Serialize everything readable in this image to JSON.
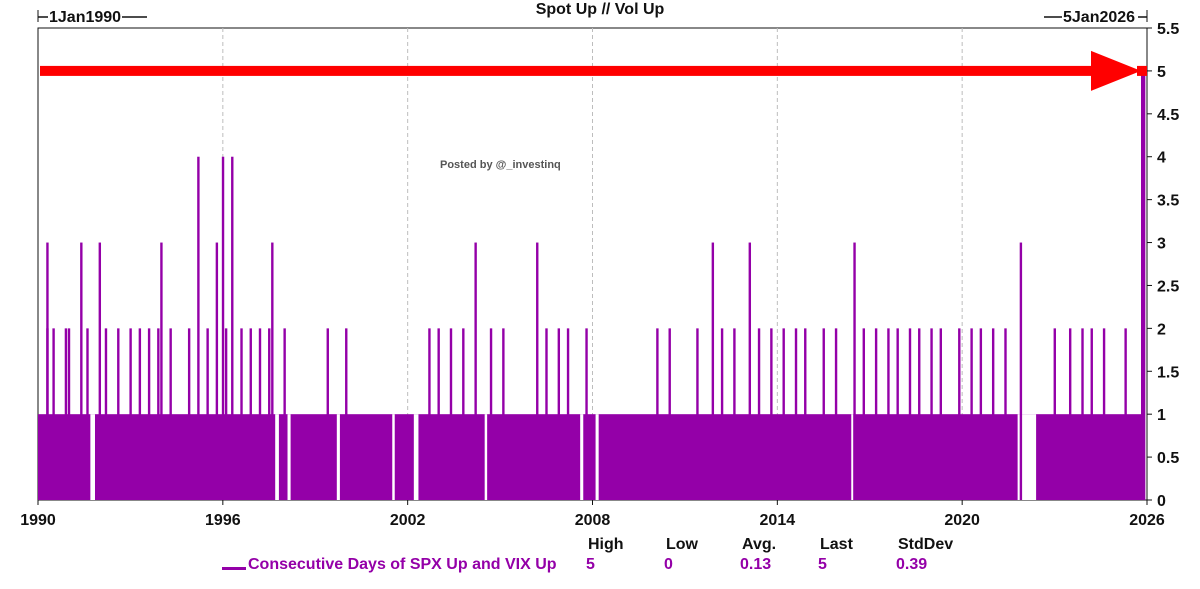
{
  "title": "Spot Up // Vol Up",
  "annotation": "Posted by @_investinq",
  "colors": {
    "series": "#9400a8",
    "arrow": "#ff0000",
    "grid": "#bdbdbd",
    "text": "#111111"
  },
  "range": {
    "start_label": "1Jan1990",
    "end_label": "5Jan2026"
  },
  "legend": {
    "series_name": "Consecutive Days of SPX Up and VIX Up",
    "headers": {
      "high": "High",
      "low": "Low",
      "avg": "Avg.",
      "last": "Last",
      "stddev": "StdDev"
    },
    "values": {
      "high": "5",
      "low": "0",
      "avg": "0.13",
      "last": "5",
      "stddev": "0.39"
    }
  },
  "chart_data": {
    "type": "bar",
    "title": "Spot Up // Vol Up",
    "x_range": [
      1990,
      2026
    ],
    "ylim": [
      0,
      5.5
    ],
    "x_ticks": [
      "1990",
      "1996",
      "2002",
      "2008",
      "2014",
      "2020",
      "2026"
    ],
    "y_ticks": [
      "0",
      "0.5",
      "1",
      "1.5",
      "2",
      "2.5",
      "3",
      "3.5",
      "4",
      "4.5",
      "5",
      "5.5"
    ],
    "grid": "vertical-dashed",
    "series": [
      {
        "name": "Consecutive Days of SPX Up and VIX Up",
        "baseline_value": 1,
        "gaps": [
          [
            1991.7,
            1991.85
          ],
          [
            1997.7,
            1997.82
          ],
          [
            1998.1,
            1998.2
          ],
          [
            1999.7,
            1999.8
          ],
          [
            2001.5,
            2001.58
          ],
          [
            2002.2,
            2002.35
          ],
          [
            2004.5,
            2004.58
          ],
          [
            2007.6,
            2007.7
          ],
          [
            2008.1,
            2008.2
          ],
          [
            2016.4,
            2016.45
          ],
          [
            2021.8,
            2022.4
          ]
        ],
        "peaks": [
          {
            "x": 1990.3,
            "y": 3
          },
          {
            "x": 1990.3,
            "y": 2
          },
          {
            "x": 1990.5,
            "y": 2
          },
          {
            "x": 1990.9,
            "y": 2
          },
          {
            "x": 1991.0,
            "y": 2
          },
          {
            "x": 1991.4,
            "y": 3
          },
          {
            "x": 1991.6,
            "y": 2
          },
          {
            "x": 1992.0,
            "y": 3
          },
          {
            "x": 1992.2,
            "y": 2
          },
          {
            "x": 1992.6,
            "y": 2
          },
          {
            "x": 1993.0,
            "y": 2
          },
          {
            "x": 1993.3,
            "y": 2
          },
          {
            "x": 1993.6,
            "y": 2
          },
          {
            "x": 1993.9,
            "y": 2
          },
          {
            "x": 1994.0,
            "y": 3
          },
          {
            "x": 1994.3,
            "y": 2
          },
          {
            "x": 1994.9,
            "y": 2
          },
          {
            "x": 1995.2,
            "y": 4
          },
          {
            "x": 1995.5,
            "y": 2
          },
          {
            "x": 1995.8,
            "y": 3
          },
          {
            "x": 1996.0,
            "y": 4
          },
          {
            "x": 1996.1,
            "y": 2
          },
          {
            "x": 1996.3,
            "y": 4
          },
          {
            "x": 1996.6,
            "y": 2
          },
          {
            "x": 1996.9,
            "y": 2
          },
          {
            "x": 1997.2,
            "y": 2
          },
          {
            "x": 1997.5,
            "y": 2
          },
          {
            "x": 1997.6,
            "y": 3
          },
          {
            "x": 1998.0,
            "y": 2
          },
          {
            "x": 1999.4,
            "y": 2
          },
          {
            "x": 2000.0,
            "y": 2
          },
          {
            "x": 2002.7,
            "y": 2
          },
          {
            "x": 2003.0,
            "y": 2
          },
          {
            "x": 2003.4,
            "y": 2
          },
          {
            "x": 2003.8,
            "y": 2
          },
          {
            "x": 2004.2,
            "y": 3
          },
          {
            "x": 2004.7,
            "y": 2
          },
          {
            "x": 2005.1,
            "y": 2
          },
          {
            "x": 2006.2,
            "y": 3
          },
          {
            "x": 2006.5,
            "y": 2
          },
          {
            "x": 2006.9,
            "y": 2
          },
          {
            "x": 2007.2,
            "y": 2
          },
          {
            "x": 2007.8,
            "y": 2
          },
          {
            "x": 2010.1,
            "y": 2
          },
          {
            "x": 2010.5,
            "y": 2
          },
          {
            "x": 2011.4,
            "y": 2
          },
          {
            "x": 2011.9,
            "y": 3
          },
          {
            "x": 2012.2,
            "y": 2
          },
          {
            "x": 2012.6,
            "y": 2
          },
          {
            "x": 2013.1,
            "y": 3
          },
          {
            "x": 2013.4,
            "y": 2
          },
          {
            "x": 2013.8,
            "y": 2
          },
          {
            "x": 2014.2,
            "y": 2
          },
          {
            "x": 2014.6,
            "y": 2
          },
          {
            "x": 2014.9,
            "y": 2
          },
          {
            "x": 2015.5,
            "y": 2
          },
          {
            "x": 2015.9,
            "y": 2
          },
          {
            "x": 2016.5,
            "y": 3
          },
          {
            "x": 2016.8,
            "y": 2
          },
          {
            "x": 2017.2,
            "y": 2
          },
          {
            "x": 2017.6,
            "y": 2
          },
          {
            "x": 2017.9,
            "y": 2
          },
          {
            "x": 2018.3,
            "y": 2
          },
          {
            "x": 2018.6,
            "y": 2
          },
          {
            "x": 2019.0,
            "y": 2
          },
          {
            "x": 2019.3,
            "y": 2
          },
          {
            "x": 2019.9,
            "y": 2
          },
          {
            "x": 2020.3,
            "y": 2
          },
          {
            "x": 2020.6,
            "y": 2
          },
          {
            "x": 2021.0,
            "y": 2
          },
          {
            "x": 2021.4,
            "y": 2
          },
          {
            "x": 2021.9,
            "y": 3
          },
          {
            "x": 2023.0,
            "y": 2
          },
          {
            "x": 2023.5,
            "y": 2
          },
          {
            "x": 2023.9,
            "y": 2
          },
          {
            "x": 2024.2,
            "y": 2
          },
          {
            "x": 2024.6,
            "y": 2
          },
          {
            "x": 2025.3,
            "y": 2
          },
          {
            "x": 2025.9,
            "y": 5
          }
        ],
        "last_value": 5
      }
    ],
    "annotation_arrow": {
      "y": 5,
      "x_from": 1990,
      "x_to": 2026
    }
  }
}
